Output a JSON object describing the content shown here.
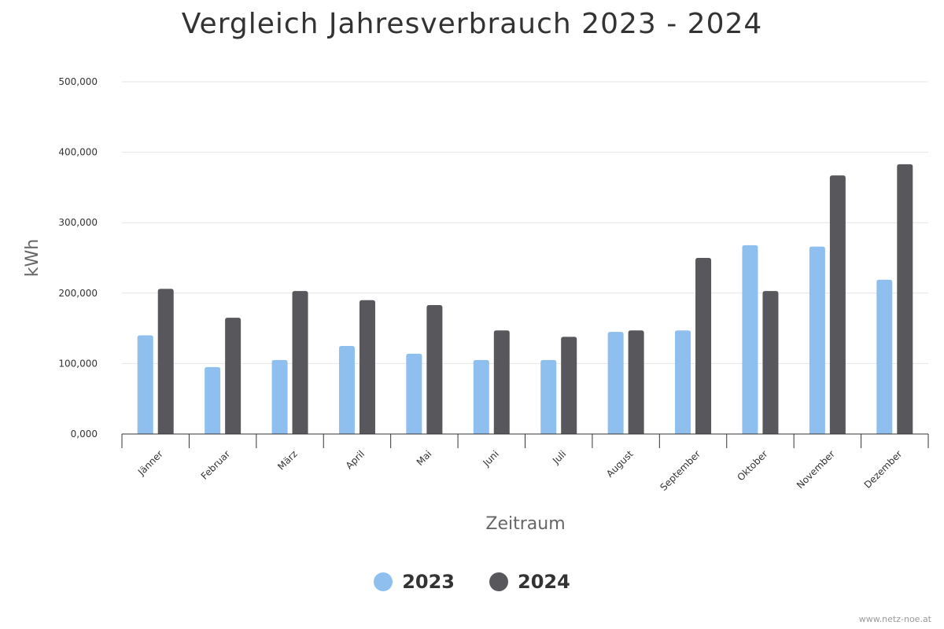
{
  "chart_data": {
    "type": "bar",
    "title": "Vergleich Jahresverbrauch 2023 - 2024",
    "xlabel": "Zeitraum",
    "ylabel": "kWh",
    "ylim": [
      0,
      500000
    ],
    "yticks": [
      "0,000",
      "100,000",
      "200,000",
      "300,000",
      "400,000",
      "500,000"
    ],
    "ytick_values": [
      0,
      100000,
      200000,
      300000,
      400000,
      500000
    ],
    "categories": [
      "Jänner",
      "Februar",
      "März",
      "April",
      "Mai",
      "Juni",
      "Juli",
      "August",
      "September",
      "Oktober",
      "November",
      "Dezember"
    ],
    "series": [
      {
        "name": "2023",
        "color": "#8fbfee",
        "values": [
          140000,
          95000,
          105000,
          125000,
          114000,
          105000,
          105000,
          145000,
          147000,
          268000,
          266000,
          219000
        ]
      },
      {
        "name": "2024",
        "color": "#58575c",
        "values": [
          206000,
          165000,
          203000,
          190000,
          183000,
          147000,
          138000,
          147000,
          250000,
          203000,
          367000,
          383000
        ]
      }
    ],
    "grid": true,
    "legend_position": "bottom-center"
  },
  "credit": "www.netz-noe.at"
}
